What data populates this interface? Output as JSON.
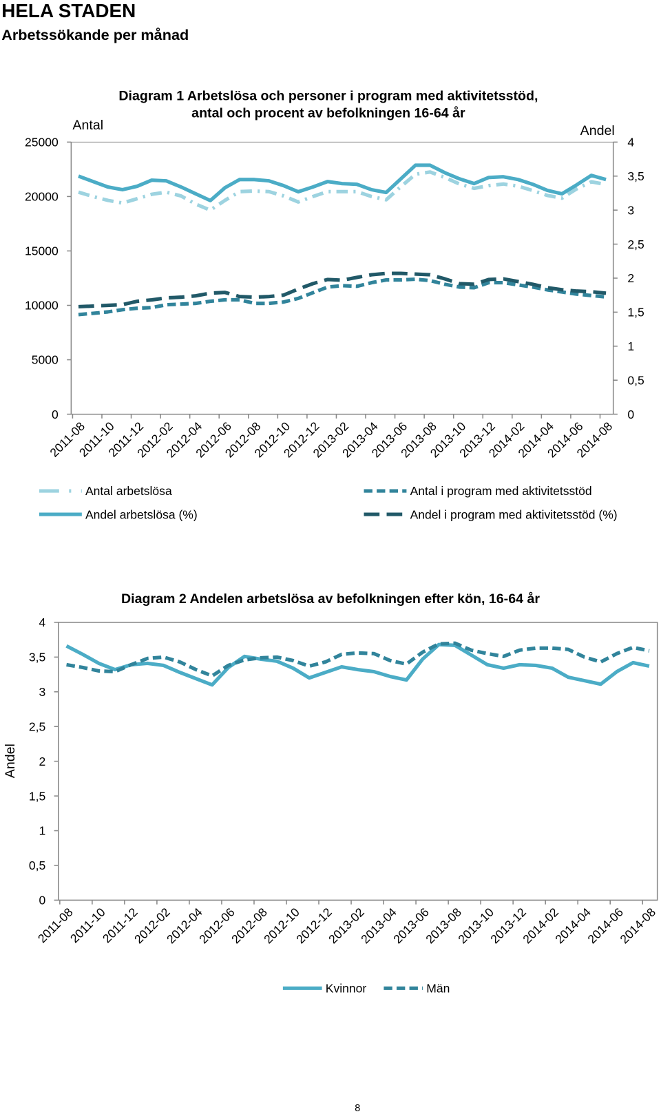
{
  "header": {
    "title": "HELA STADEN",
    "subtitle": "Arbetssökande per månad"
  },
  "chart_data": [
    {
      "type": "line",
      "title": "Diagram 1 Arbetslösa och personer i program med aktivitetsstöd, antal och procent av befolkningen 16-64 år",
      "y_label": "Antal",
      "y2_label": "Andel",
      "categories": [
        "2011-08",
        null,
        "2011-10",
        null,
        "2011-12",
        null,
        "2012-02",
        null,
        "2012-04",
        null,
        "2012-06",
        null,
        "2012-08",
        null,
        "2012-10",
        null,
        "2012-12",
        null,
        "2013-02",
        null,
        "2013-04",
        null,
        "2013-06",
        null,
        "2013-08",
        null,
        "2013-10",
        null,
        "2013-12",
        null,
        "2014-02",
        null,
        "2014-04",
        null,
        "2014-06",
        null,
        "2014-08"
      ],
      "ylim": [
        0,
        25000
      ],
      "yticks": [
        0,
        5000,
        10000,
        15000,
        20000,
        25000
      ],
      "y2lim": [
        0,
        4
      ],
      "y2ticks": [
        0,
        {
          "value": 0.5,
          "label": "0,5"
        },
        1,
        {
          "value": 1.5,
          "label": "1,5"
        },
        2,
        {
          "value": 2.5,
          "label": "2,5"
        },
        3,
        {
          "value": 3.5,
          "label": "3,5"
        },
        4
      ],
      "series": [
        {
          "name": "Antal arbetslösa",
          "color": "#9dd3e0",
          "line_style": "dashdot",
          "values": [
            20400,
            20000,
            19650,
            19400,
            19800,
            20200,
            20400,
            20050,
            19300,
            18750,
            19650,
            20450,
            20500,
            20450,
            20050,
            19500,
            20000,
            20450,
            20450,
            20450,
            20000,
            19700,
            20900,
            22050,
            22250,
            21750,
            21150,
            20750,
            21000,
            21150,
            20950,
            20550,
            20100,
            19850,
            20700,
            21350,
            21100
          ]
        },
        {
          "name": "Andel arbetslösa (%)",
          "color": "#4bacc6",
          "line_style": "solid",
          "axis": "y2",
          "values": [
            3.5,
            3.42,
            3.34,
            3.3,
            3.35,
            3.44,
            3.43,
            3.34,
            3.24,
            3.14,
            3.33,
            3.45,
            3.45,
            3.43,
            3.36,
            3.27,
            3.34,
            3.42,
            3.39,
            3.38,
            3.3,
            3.26,
            3.46,
            3.66,
            3.66,
            3.55,
            3.46,
            3.39,
            3.48,
            3.49,
            3.45,
            3.38,
            3.29,
            3.24,
            3.37,
            3.51,
            3.45
          ]
        },
        {
          "name": "Antal i program med aktivitetsstöd",
          "color": "#31849b",
          "line_style": "dashed",
          "values": [
            9150,
            9270,
            9400,
            9600,
            9730,
            9800,
            10050,
            10120,
            10180,
            10380,
            10510,
            10510,
            10180,
            10180,
            10310,
            10640,
            11160,
            11680,
            11810,
            11750,
            12080,
            12340,
            12340,
            12400,
            12270,
            11940,
            11680,
            11620,
            12080,
            12080,
            11880,
            11680,
            11420,
            11230,
            11030,
            10900,
            10770
          ]
        },
        {
          "name": "Andel i program med aktivitetsstöd (%)",
          "color": "#215968",
          "line_style": "longdash",
          "axis": "y2",
          "values": [
            1.58,
            1.59,
            1.6,
            1.61,
            1.66,
            1.68,
            1.71,
            1.72,
            1.74,
            1.78,
            1.79,
            1.73,
            1.72,
            1.73,
            1.75,
            1.84,
            1.92,
            1.98,
            1.97,
            2.01,
            2.05,
            2.07,
            2.07,
            2.06,
            2.05,
            1.99,
            1.92,
            1.91,
            1.98,
            1.99,
            1.95,
            1.91,
            1.86,
            1.83,
            1.81,
            1.8,
            1.78
          ]
        }
      ]
    },
    {
      "type": "line",
      "title": "Diagram 2 Andelen arbetslösa av befolkningen efter kön, 16-64 år",
      "y_label": "Andel",
      "categories": [
        "2011-08",
        null,
        "2011-10",
        null,
        "2011-12",
        null,
        "2012-02",
        null,
        "2012-04",
        null,
        "2012-06",
        null,
        "2012-08",
        null,
        "2012-10",
        null,
        "2012-12",
        null,
        "2013-02",
        null,
        "2013-04",
        null,
        "2013-06",
        null,
        "2013-08",
        null,
        "2013-10",
        null,
        "2013-12",
        null,
        "2014-02",
        null,
        "2014-04",
        null,
        "2014-06",
        null,
        "2014-08"
      ],
      "ylim": [
        0,
        4
      ],
      "yticks": [
        0,
        {
          "value": 0.5,
          "label": "0,5"
        },
        1,
        {
          "value": 1.5,
          "label": "1,5"
        },
        2,
        {
          "value": 2.5,
          "label": "2,5"
        },
        3,
        {
          "value": 3.5,
          "label": "3,5"
        },
        4
      ],
      "series": [
        {
          "name": "Kvinnor",
          "color": "#4bacc6",
          "line_style": "solid",
          "values": [
            3.66,
            3.54,
            3.41,
            3.32,
            3.39,
            3.41,
            3.38,
            3.28,
            3.19,
            3.1,
            3.35,
            3.51,
            3.47,
            3.44,
            3.34,
            3.2,
            3.28,
            3.36,
            3.32,
            3.29,
            3.22,
            3.17,
            3.47,
            3.68,
            3.67,
            3.53,
            3.39,
            3.34,
            3.39,
            3.38,
            3.34,
            3.21,
            3.16,
            3.11,
            3.29,
            3.42,
            3.37
          ]
        },
        {
          "name": "Män",
          "color": "#31849b",
          "line_style": "dashed",
          "values": [
            3.39,
            3.35,
            3.3,
            3.29,
            3.39,
            3.48,
            3.5,
            3.43,
            3.32,
            3.23,
            3.38,
            3.46,
            3.49,
            3.5,
            3.45,
            3.37,
            3.43,
            3.54,
            3.56,
            3.55,
            3.45,
            3.4,
            3.57,
            3.69,
            3.7,
            3.6,
            3.55,
            3.51,
            3.6,
            3.63,
            3.63,
            3.61,
            3.5,
            3.43,
            3.55,
            3.64,
            3.59
          ]
        }
      ]
    }
  ],
  "page_number": 8
}
